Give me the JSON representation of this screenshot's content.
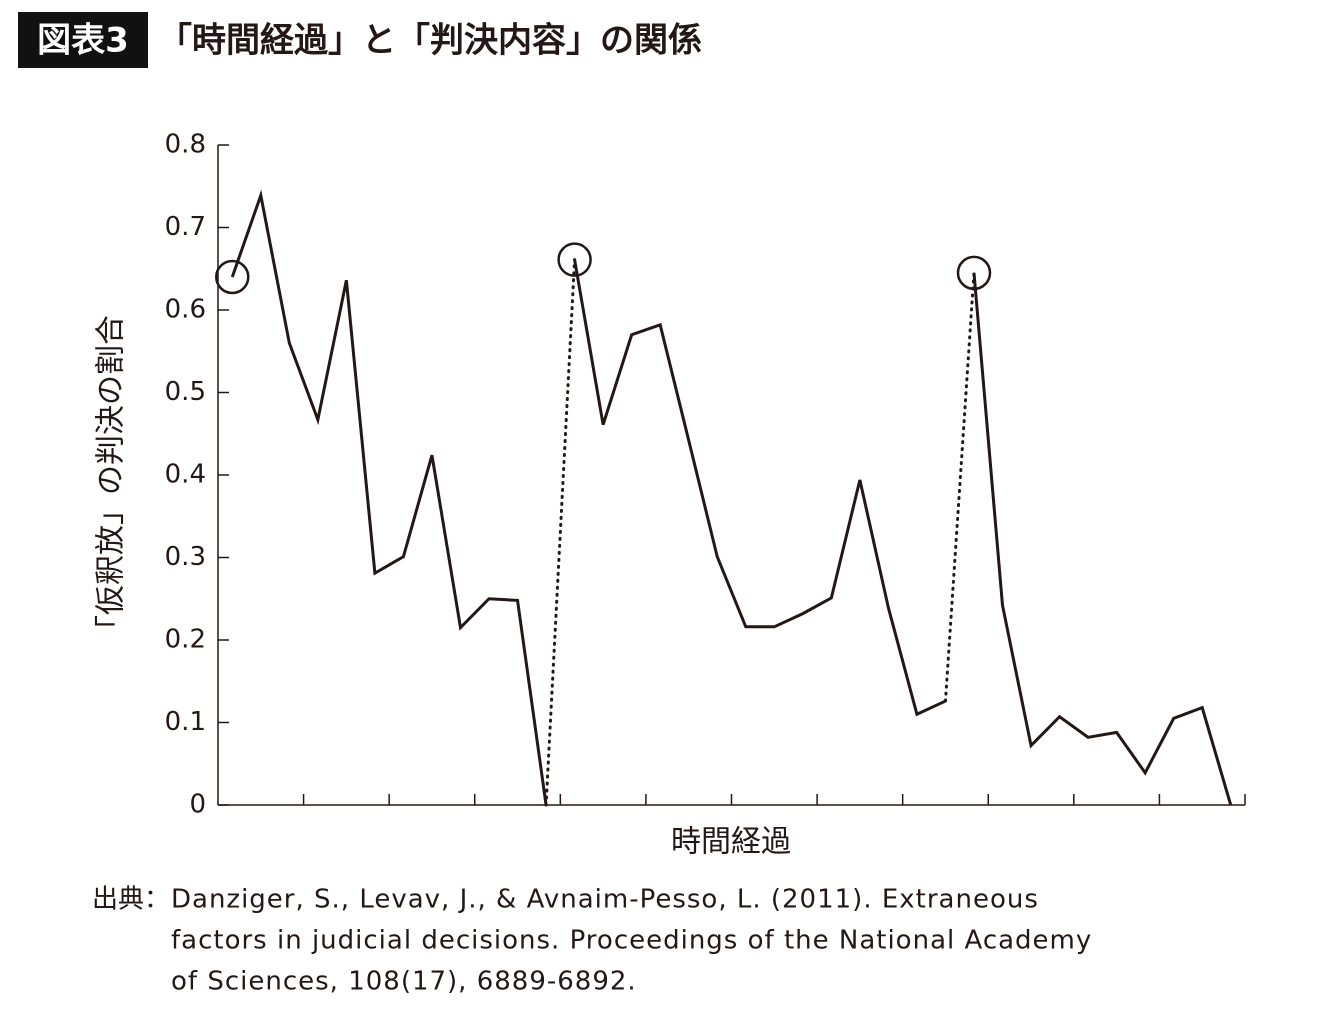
{
  "chart_data": {
    "type": "line",
    "badge": "図表3",
    "title": "「時間経過」と「判決内容」の関係",
    "ylabel": "「仮釈放」の判決の割合",
    "xlabel": "時間経過",
    "source_label": "出典：",
    "source_lines": [
      "Danziger, S., Levav, J., & Avnaim-Pesso, L. (2011). Extraneous",
      "factors in judicial decisions. Proceedings of the National Academy",
      "of Sciences, 108(17), 6889-6892."
    ],
    "color": "#231815",
    "series": [
      {
        "x": [
          0.5,
          1.5,
          2.5,
          3.5,
          4.5,
          5.5,
          6.5,
          7.5,
          8.5,
          9.5,
          10.5,
          11.5
        ],
        "values": [
          0.64,
          0.739,
          0.56,
          0.467,
          0.636,
          0.281,
          0.301,
          0.424,
          0.215,
          0.25,
          0.248,
          0
        ]
      },
      {
        "x": [
          12.5,
          13.5,
          14.5,
          15.5,
          16.5,
          17.5,
          18.5,
          19.5,
          20.5,
          21.5,
          22.5,
          23.5,
          24.5,
          25.5
        ],
        "values": [
          0.661,
          0.461,
          0.57,
          0.582,
          0.442,
          0.301,
          0.216,
          0.216,
          0.232,
          0.251,
          0.394,
          0.239,
          0.11,
          0.126
        ]
      },
      {
        "x": [
          26.5,
          27.5,
          28.5,
          29.5,
          30.5,
          31.5,
          32.5,
          33.5,
          34.5,
          35.5
        ],
        "values": [
          0.645,
          0.242,
          0.072,
          0.107,
          0.082,
          0.088,
          0.039,
          0.105,
          0.118,
          0
        ]
      }
    ],
    "xlim": [
      0,
      36
    ],
    "xticks": [
      3,
      6,
      9,
      12,
      15,
      18,
      21,
      24,
      27,
      30,
      33,
      36
    ],
    "ylim": [
      0,
      0.8
    ],
    "yticks": [
      0,
      0.1,
      0.2,
      0.3,
      0.4,
      0.5,
      0.6,
      0.7,
      0.8
    ]
  }
}
